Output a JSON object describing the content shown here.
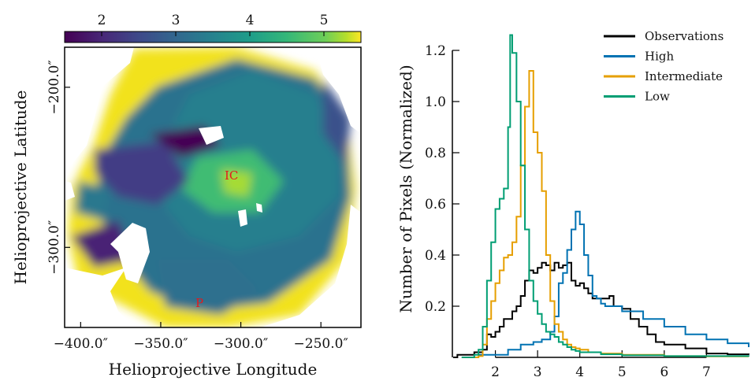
{
  "chart_data": [
    {
      "type": "heatmap",
      "xlabel": "Helioprojective Longitude",
      "ylabel": "Helioprojective Latitude",
      "xticks": [
        "−400.0″",
        "−350.0″",
        "−300.0″",
        "−250.0″"
      ],
      "xtick_values": [
        -400,
        -350,
        -300,
        -250
      ],
      "yticks": [
        "−200.0″",
        "−300.0″"
      ],
      "ytick_values": [
        -200,
        -300
      ],
      "xlim": [
        -410,
        -225
      ],
      "ylim": [
        -350,
        -175
      ],
      "colorbar": {
        "colormap": "viridis",
        "range": [
          1.5,
          5.5
        ],
        "ticks": [
          "2",
          "3",
          "4",
          "5"
        ],
        "tick_values": [
          2,
          3,
          4,
          5
        ]
      },
      "annotations": [
        {
          "text": "IC",
          "x": -296,
          "y": -229,
          "color": "#e41a1c"
        },
        {
          "text": "P",
          "x": -330,
          "y": -323,
          "color": "#e41a1c"
        }
      ]
    },
    {
      "type": "line",
      "xlabel": "",
      "ylabel": "Number of Pixels (Normalized)",
      "xlim": [
        1.0,
        8.0
      ],
      "ylim": [
        0,
        1.3
      ],
      "xticks": [
        "2",
        "3",
        "4",
        "5",
        "6",
        "7"
      ],
      "xtick_values": [
        2,
        3,
        4,
        5,
        6,
        7
      ],
      "yticks": [
        "0.2",
        "0.4",
        "0.6",
        "0.8",
        "1.0",
        "1.2"
      ],
      "ytick_values": [
        0.2,
        0.4,
        0.6,
        0.8,
        1.0,
        1.2
      ],
      "legend_position": "top-right",
      "grid": false,
      "series": [
        {
          "name": "Observations",
          "color": "#000000",
          "x": [
            1.0,
            1.1,
            1.3,
            1.5,
            1.7,
            1.8,
            1.9,
            2.0,
            2.1,
            2.2,
            2.3,
            2.4,
            2.5,
            2.6,
            2.7,
            2.8,
            2.9,
            3.0,
            3.1,
            3.2,
            3.3,
            3.4,
            3.5,
            3.6,
            3.7,
            3.8,
            3.9,
            4.0,
            4.1,
            4.2,
            4.3,
            4.5,
            4.7,
            4.8,
            5.0,
            5.2,
            5.4,
            5.6,
            5.8,
            6.0,
            6.5,
            7.0,
            7.5,
            8.0
          ],
          "y": [
            0.0,
            0.01,
            0.01,
            0.02,
            0.03,
            0.09,
            0.08,
            0.1,
            0.12,
            0.15,
            0.15,
            0.18,
            0.2,
            0.24,
            0.3,
            0.34,
            0.33,
            0.35,
            0.37,
            0.36,
            0.34,
            0.37,
            0.35,
            0.36,
            0.37,
            0.3,
            0.28,
            0.29,
            0.27,
            0.25,
            0.23,
            0.23,
            0.24,
            0.2,
            0.19,
            0.15,
            0.12,
            0.09,
            0.06,
            0.05,
            0.035,
            0.015,
            0.012,
            0.01
          ]
        },
        {
          "name": "High",
          "color": "#0072b2",
          "x": [
            1.6,
            2.0,
            2.3,
            2.6,
            2.9,
            3.1,
            3.3,
            3.4,
            3.5,
            3.6,
            3.7,
            3.8,
            3.9,
            4.0,
            4.1,
            4.2,
            4.3,
            4.4,
            4.5,
            4.6,
            4.8,
            5.0,
            5.5,
            6.0,
            6.5,
            7.0,
            7.5,
            8.0
          ],
          "y": [
            0.01,
            0.01,
            0.03,
            0.05,
            0.06,
            0.07,
            0.1,
            0.16,
            0.29,
            0.33,
            0.42,
            0.5,
            0.57,
            0.52,
            0.4,
            0.32,
            0.24,
            0.23,
            0.21,
            0.2,
            0.2,
            0.18,
            0.15,
            0.12,
            0.09,
            0.07,
            0.055,
            0.04
          ]
        },
        {
          "name": "Intermediate",
          "color": "#e69f00",
          "x": [
            1.5,
            1.6,
            1.7,
            1.8,
            1.9,
            2.0,
            2.1,
            2.2,
            2.3,
            2.4,
            2.5,
            2.6,
            2.7,
            2.8,
            2.9,
            3.0,
            3.1,
            3.2,
            3.3,
            3.4,
            3.5,
            3.6,
            3.7,
            3.8,
            3.9,
            4.0,
            4.2,
            4.5,
            5.0,
            6.0,
            7.0,
            8.0
          ],
          "y": [
            0.0,
            0.005,
            0.05,
            0.15,
            0.22,
            0.29,
            0.34,
            0.39,
            0.4,
            0.45,
            0.55,
            0.75,
            0.98,
            1.12,
            0.88,
            0.8,
            0.65,
            0.4,
            0.22,
            0.13,
            0.1,
            0.07,
            0.05,
            0.04,
            0.035,
            0.03,
            0.02,
            0.015,
            0.01,
            0.005,
            0.004,
            0.003
          ]
        },
        {
          "name": "Low",
          "color": "#009e73",
          "x": [
            1.2,
            1.5,
            1.6,
            1.7,
            1.8,
            1.9,
            2.0,
            2.1,
            2.2,
            2.3,
            2.35,
            2.4,
            2.5,
            2.6,
            2.7,
            2.8,
            2.9,
            3.0,
            3.1,
            3.2,
            3.3,
            3.4,
            3.5,
            3.6,
            3.7,
            3.8,
            3.9,
            4.0,
            4.5,
            5.0,
            6.0,
            8.0
          ],
          "y": [
            0.0,
            0.01,
            0.03,
            0.12,
            0.3,
            0.45,
            0.58,
            0.62,
            0.66,
            0.9,
            1.26,
            1.19,
            1.0,
            0.75,
            0.5,
            0.3,
            0.22,
            0.17,
            0.13,
            0.1,
            0.09,
            0.08,
            0.06,
            0.05,
            0.04,
            0.03,
            0.025,
            0.02,
            0.012,
            0.008,
            0.005,
            0.003
          ]
        }
      ]
    }
  ]
}
